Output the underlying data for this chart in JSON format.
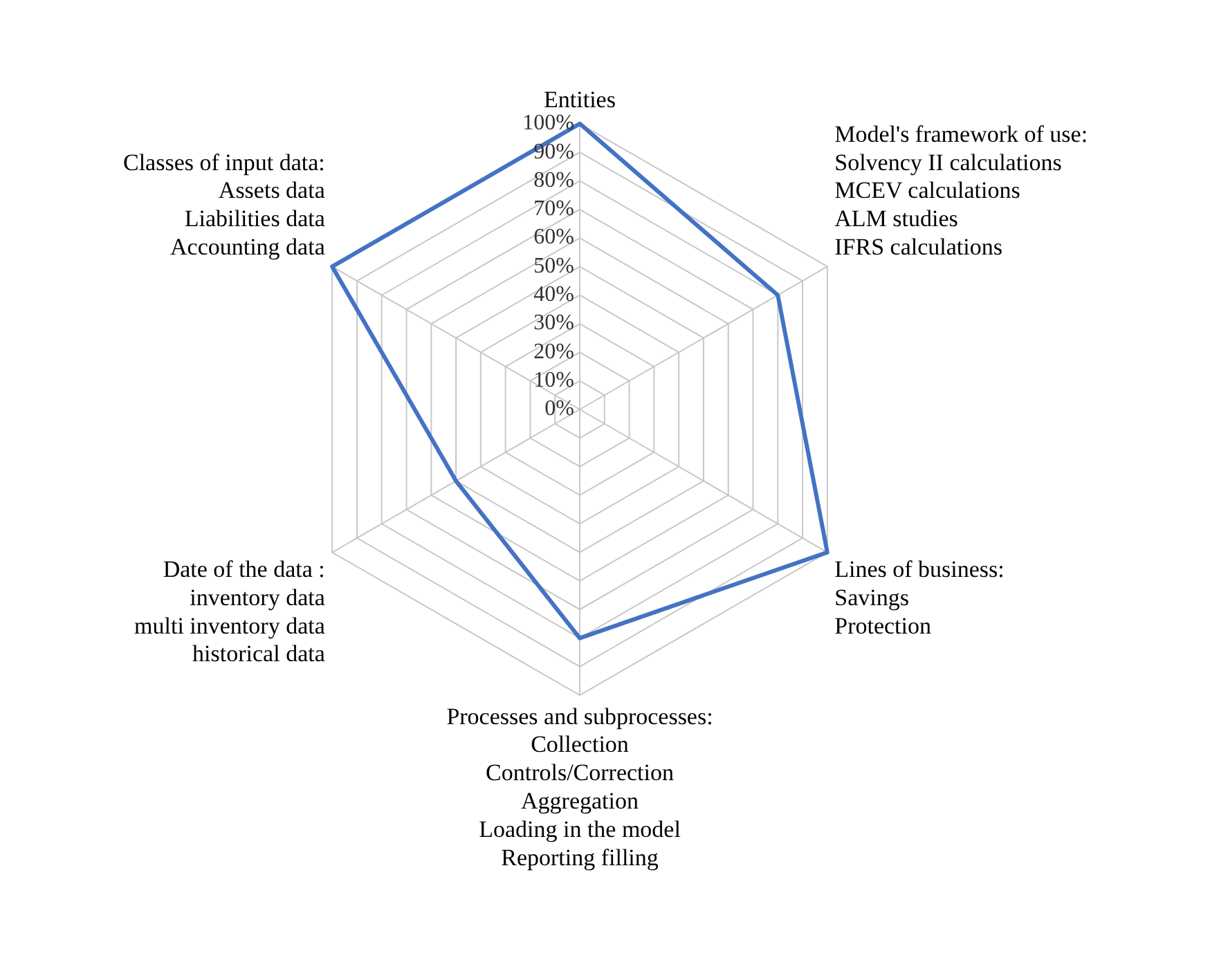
{
  "chart_data": {
    "type": "radar",
    "categories": [
      "Entities",
      "Model's framework of use:\nSolvency II calculations\nMCEV calculations\nALM studies\nIFRS calculations",
      "Lines of business:\nSavings\nProtection",
      "Processes and subprocesses:\nCollection\nControls/Correction\nAggregation\nLoading in the model\nReporting filling",
      "Date of the data :\ninventory data\nmulti inventory data\nhistorical data",
      "Classes of input data:\nAssets data\nLiabilities data\nAccounting data"
    ],
    "series": [
      {
        "color": "#4472c4",
        "values": [
          100,
          80,
          100,
          80,
          50,
          100
        ]
      }
    ],
    "ylim": [
      0,
      100
    ],
    "yticks": [
      {
        "value": 0,
        "label": "0%"
      },
      {
        "value": 10,
        "label": "10%"
      },
      {
        "value": 20,
        "label": "20%"
      },
      {
        "value": 30,
        "label": "30%"
      },
      {
        "value": 40,
        "label": "40%"
      },
      {
        "value": 50,
        "label": "50%"
      },
      {
        "value": 60,
        "label": "60%"
      },
      {
        "value": 70,
        "label": "70%"
      },
      {
        "value": 80,
        "label": "80%"
      },
      {
        "value": 90,
        "label": "90%"
      },
      {
        "value": 100,
        "label": "100%"
      }
    ],
    "grid": true,
    "legend": false,
    "marker": "none"
  }
}
